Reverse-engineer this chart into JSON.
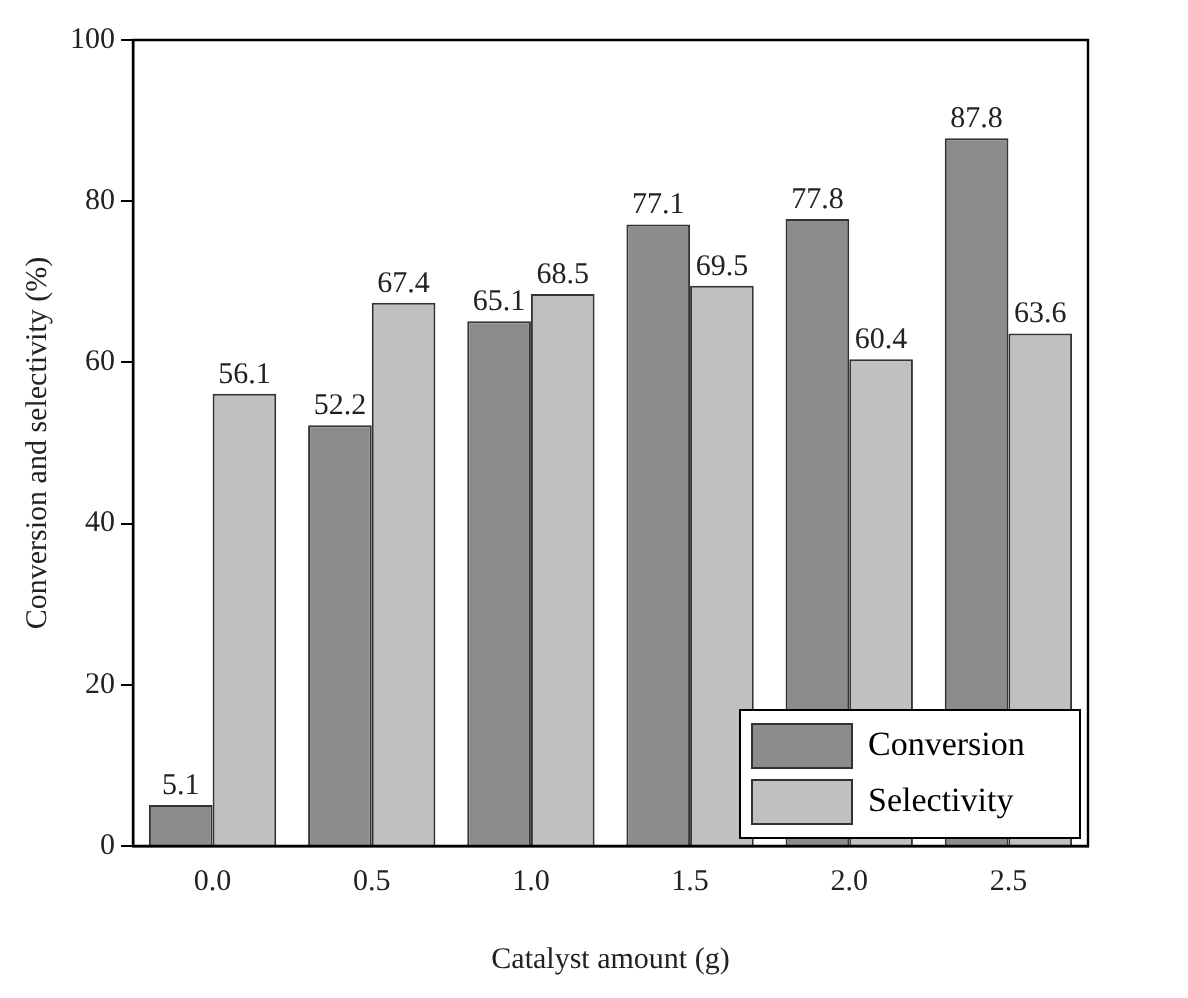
{
  "chart_data": {
    "type": "bar",
    "xlabel": "Catalyst amount (g)",
    "ylabel": "Conversion and selectivity (%)",
    "categories": [
      "0.0",
      "0.5",
      "1.0",
      "1.5",
      "2.0",
      "2.5"
    ],
    "series": [
      {
        "name": "Conversion",
        "color": "#8c8c8c",
        "values": [
          5.1,
          52.2,
          65.1,
          77.1,
          77.8,
          87.8
        ]
      },
      {
        "name": "Selectivity",
        "color": "#c0c0c0",
        "values": [
          56.1,
          67.4,
          68.5,
          69.5,
          60.4,
          63.6
        ]
      }
    ],
    "ylim": [
      0,
      100
    ],
    "yticks": [
      0,
      20,
      40,
      60,
      80,
      100
    ],
    "grid": false,
    "legend": "bottom right",
    "data_labels": true
  }
}
